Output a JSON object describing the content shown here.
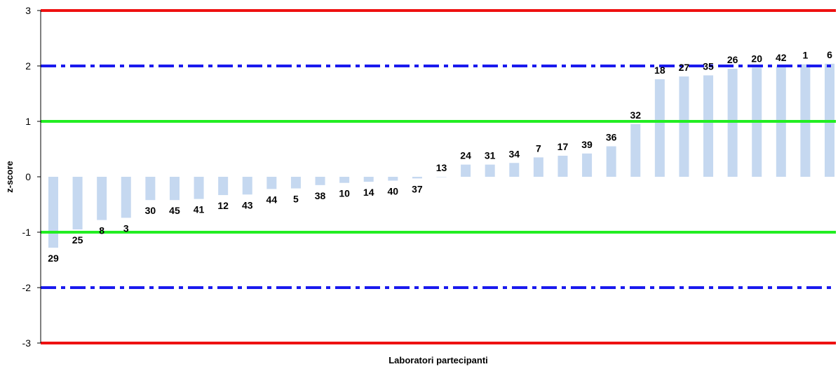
{
  "chart_data": {
    "type": "bar",
    "xlabel": "Laboratori partecipanti",
    "ylabel": "z-score",
    "ylim": [
      -3,
      3
    ],
    "yticks": [
      3,
      2,
      1,
      0,
      -1,
      -2,
      -3
    ],
    "grid": false,
    "legend": "none",
    "categories": [
      "29",
      "25",
      "8",
      "3",
      "30",
      "45",
      "41",
      "12",
      "43",
      "44",
      "5",
      "38",
      "10",
      "14",
      "40",
      "37",
      "13",
      "24",
      "31",
      "34",
      "7",
      "17",
      "39",
      "36",
      "32",
      "18",
      "27",
      "35",
      "26",
      "20",
      "42",
      "1",
      "6"
    ],
    "values": [
      -1.28,
      -0.95,
      -0.78,
      -0.74,
      -0.42,
      -0.42,
      -0.4,
      -0.33,
      -0.32,
      -0.22,
      -0.21,
      -0.15,
      -0.11,
      -0.09,
      -0.07,
      -0.03,
      0.0,
      0.22,
      0.22,
      0.25,
      0.35,
      0.38,
      0.42,
      0.55,
      0.95,
      1.76,
      1.81,
      1.83,
      1.95,
      1.97,
      1.99,
      2.03,
      2.04
    ],
    "reference_lines": [
      {
        "y": 3,
        "color": "#ee1111",
        "style": "solid"
      },
      {
        "y": 2,
        "color": "#1a1aee",
        "style": "dash-dot"
      },
      {
        "y": 1,
        "color": "#22ee22",
        "style": "solid"
      },
      {
        "y": -1,
        "color": "#22ee22",
        "style": "solid"
      },
      {
        "y": -2,
        "color": "#1a1aee",
        "style": "dash-dot"
      },
      {
        "y": -3,
        "color": "#ee1111",
        "style": "solid"
      }
    ],
    "bar_color": "#c5d8f0"
  }
}
